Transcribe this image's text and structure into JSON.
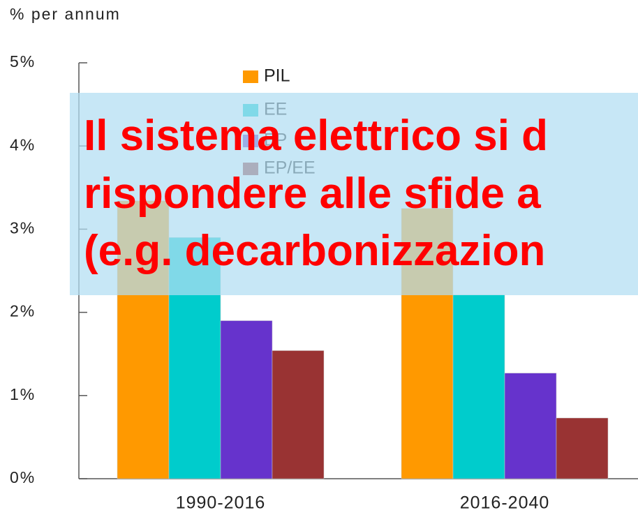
{
  "chart_data": {
    "type": "bar",
    "y_axis_label": "% per annum",
    "categories": [
      "1990-2016",
      "2016-2040"
    ],
    "series": [
      {
        "name": "PIL",
        "color": "#ff9900",
        "values": [
          3.34,
          3.25
        ]
      },
      {
        "name": "EE",
        "color": "#00cccc",
        "values": [
          2.9,
          2.21
        ]
      },
      {
        "name": "EP",
        "color": "#6633cc",
        "values": [
          1.9,
          1.27
        ]
      },
      {
        "name": "EP/EE",
        "color": "#993333",
        "values": [
          1.54,
          0.73
        ]
      }
    ],
    "ylim": [
      0,
      5
    ],
    "yticks": [
      {
        "value": 0,
        "label": "0%"
      },
      {
        "value": 1,
        "label": "1%"
      },
      {
        "value": 2,
        "label": "2%"
      },
      {
        "value": 3,
        "label": "3%"
      },
      {
        "value": 4,
        "label": "4%"
      },
      {
        "value": 5,
        "label": "5%"
      }
    ],
    "grid": false,
    "legend": "top",
    "annotations": [
      "Il sistema elettrico si d",
      "rispondere alle sfide a",
      "(e.g. decarbonizzazion"
    ]
  }
}
